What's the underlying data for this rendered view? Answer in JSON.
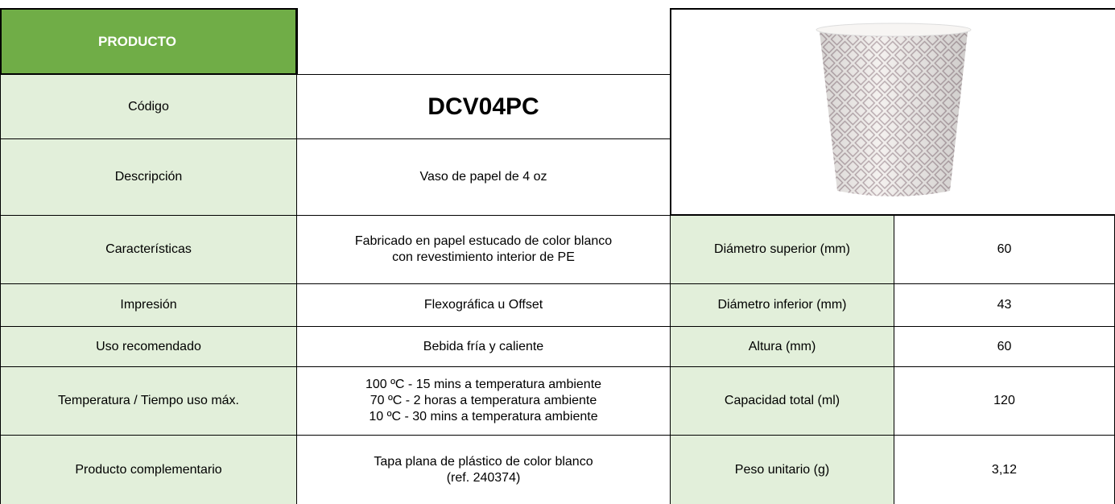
{
  "header": {
    "title": "PRODUCTO"
  },
  "rows": [
    {
      "label": "Código",
      "value": [
        "DCV04PC"
      ]
    },
    {
      "label": "Descripción",
      "value": [
        "Vaso de papel de 4 oz"
      ]
    },
    {
      "label": "Características",
      "value": [
        "Fabricado en papel estucado de color blanco",
        "con revestimiento interior de PE"
      ]
    },
    {
      "label": "Impresión",
      "value": [
        "Flexográfica u Offset"
      ]
    },
    {
      "label": "Uso recomendado",
      "value": [
        "Bebida fría y caliente"
      ]
    },
    {
      "label": "Temperatura / Tiempo uso máx.",
      "value": [
        "100 ºC - 15 mins a temperatura ambiente",
        "70 ºC - 2 horas a temperatura ambiente",
        "10 ºC - 30 mins a temperatura ambiente"
      ]
    },
    {
      "label": "Producto complementario",
      "value": [
        "Tapa plana de plástico de color blanco",
        "(ref. 240374)"
      ]
    }
  ],
  "specs": [
    {
      "label": "Diámetro superior (mm)",
      "value": "60"
    },
    {
      "label": "Diámetro inferior (mm)",
      "value": "43"
    },
    {
      "label": "Altura (mm)",
      "value": "60"
    },
    {
      "label": "Capacidad total (ml)",
      "value": "120"
    },
    {
      "label": "Peso unitario (g)",
      "value": "3,12"
    }
  ]
}
